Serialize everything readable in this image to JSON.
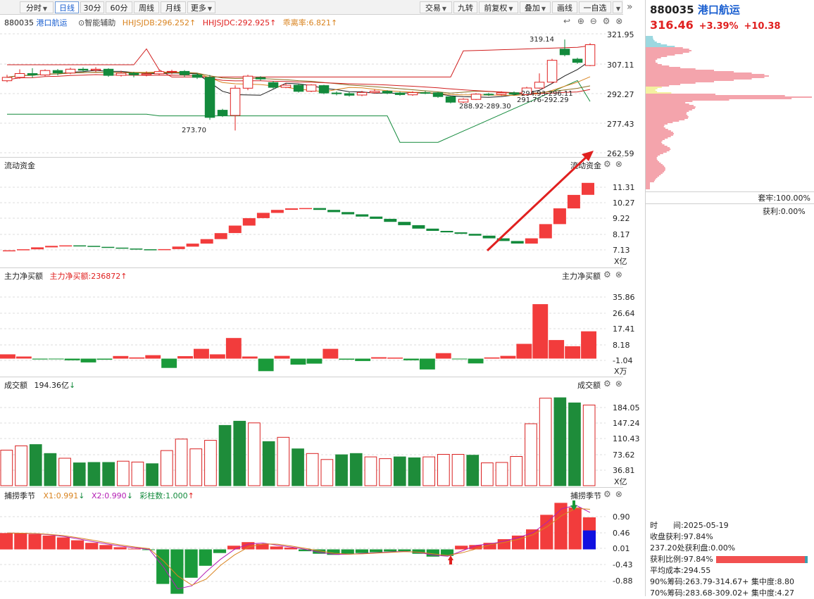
{
  "toolbar": {
    "periods": [
      "分时",
      "日线",
      "30分",
      "60分",
      "周线",
      "月线",
      "更多"
    ],
    "active_period": "日线",
    "right_buttons": [
      "交易",
      "九转",
      "前复权",
      "叠加",
      "画线",
      "一自选"
    ],
    "collapse_icon": "double-chevron-right-icon"
  },
  "stock": {
    "code": "880035",
    "name": "港口航运",
    "price": "316.46",
    "change_pct": "+3.39%",
    "change": "+10.38",
    "up_color": "#e0201f",
    "down_color": "#138a3c"
  },
  "main_panel": {
    "assist_label": "智能辅助",
    "indicators": [
      {
        "name": "HHJSJDB",
        "value": "296.252",
        "color": "#d9831f"
      },
      {
        "name": "HHJSJDC",
        "value": "292.925",
        "color": "#e0201f"
      },
      {
        "name": "乖离率",
        "value": "6.821",
        "color": "#d9831f"
      }
    ],
    "price_axis": [
      "321.95",
      "307.11",
      "292.27",
      "277.43",
      "262.59"
    ],
    "annotations": [
      "319.14",
      "273.70",
      "288.92-289.30",
      "294.93-296.11",
      "291.76-292.29"
    ],
    "candles": [
      [
        298.5,
        300.2,
        301.5,
        297.8
      ],
      [
        300.2,
        302.1,
        304.2,
        299.5
      ],
      [
        302.1,
        301.4,
        304.8,
        300.1
      ],
      [
        301.4,
        303.6,
        304.2,
        300.8
      ],
      [
        303.6,
        302.4,
        304.4,
        301.2
      ],
      [
        302.4,
        304.3,
        305.0,
        301.8
      ],
      [
        304.3,
        303.8,
        305.2,
        302.9
      ],
      [
        303.8,
        304.3,
        305.3,
        302.9
      ],
      [
        304.3,
        301.2,
        304.8,
        300.5
      ],
      [
        301.2,
        302.3,
        303.5,
        300.6
      ],
      [
        302.3,
        301.5,
        303.0,
        300.2
      ],
      [
        301.5,
        302.0,
        303.2,
        300.7
      ],
      [
        302.0,
        303.1,
        304.0,
        301.2
      ],
      [
        303.1,
        303.2,
        304.0,
        301.8
      ],
      [
        303.2,
        301.5,
        303.8,
        300.4
      ],
      [
        301.5,
        300.2,
        302.4,
        299.4
      ],
      [
        300.2,
        280.2,
        301.4,
        279.0
      ],
      [
        283.8,
        281.2,
        284.5,
        280.4
      ],
      [
        281.2,
        294.8,
        296.2,
        273.7
      ],
      [
        294.8,
        300.8,
        301.5,
        293.8
      ],
      [
        300.1,
        299.4,
        300.8,
        298.6
      ],
      [
        297.6,
        295.2,
        298.4,
        294.5
      ],
      [
        295.2,
        296.3,
        297.2,
        294.8
      ],
      [
        296.3,
        293.2,
        296.8,
        292.6
      ],
      [
        293.3,
        296.4,
        296.8,
        292.9
      ],
      [
        296.1,
        292.4,
        296.5,
        291.8
      ],
      [
        292.4,
        292.0,
        293.2,
        291.2
      ],
      [
        292.1,
        291.3,
        292.8,
        290.6
      ],
      [
        291.4,
        292.7,
        293.5,
        290.8
      ],
      [
        292.6,
        293.3,
        294.2,
        292.0
      ],
      [
        293.3,
        292.4,
        293.8,
        291.8
      ],
      [
        292.4,
        291.6,
        293.1,
        291.0
      ],
      [
        291.5,
        292.6,
        293.3,
        291.0
      ],
      [
        292.6,
        292.5,
        293.4,
        291.8
      ],
      [
        292.5,
        290.6,
        292.9,
        290.0
      ],
      [
        290.5,
        287.8,
        291.0,
        287.2
      ],
      [
        287.9,
        289.3,
        289.8,
        287.3
      ],
      [
        289.2,
        291.8,
        292.4,
        288.9
      ],
      [
        291.8,
        291.7,
        292.5,
        290.9
      ],
      [
        291.7,
        292.5,
        293.3,
        291.0
      ],
      [
        292.5,
        291.8,
        293.2,
        291.1
      ],
      [
        291.6,
        294.9,
        295.5,
        291.4
      ],
      [
        294.9,
        297.8,
        302.2,
        294.5
      ],
      [
        297.8,
        308.7,
        309.5,
        297.2
      ],
      [
        314.3,
        311.5,
        319.1,
        310.7
      ],
      [
        309.3,
        307.7,
        310.0,
        306.9
      ],
      [
        306.1,
        316.5,
        317.3,
        305.8
      ]
    ],
    "curve_colors": [
      "#d11f1f",
      "#1a1a1a",
      "#d9831f",
      "#8a6d1f",
      "#138a3c"
    ]
  },
  "liquidity_panel": {
    "title": "流动资金",
    "title_right": "流动资金",
    "axis": [
      "11.31",
      "10.27",
      "9.22",
      "8.17",
      "7.13"
    ],
    "unit": "X亿",
    "steps": [
      7.1,
      7.17,
      7.3,
      7.4,
      7.43,
      7.4,
      7.33,
      7.28,
      7.22,
      7.17,
      7.13,
      7.18,
      7.35,
      7.55,
      7.85,
      8.25,
      8.75,
      9.25,
      9.6,
      9.8,
      9.9,
      9.92,
      9.8,
      9.65,
      9.5,
      9.35,
      9.2,
      9.0,
      8.78,
      8.55,
      8.4,
      8.3,
      8.2,
      8.08,
      7.9,
      7.72,
      7.55,
      7.9,
      8.85,
      9.9,
      10.8,
      11.6
    ]
  },
  "mainforce_panel": {
    "title": "主力净买额",
    "value_label": "主力净买额",
    "value": "236872",
    "title_right": "主力净买额",
    "axis": [
      "35.86",
      "26.64",
      "17.41",
      "8.18",
      "-1.04"
    ],
    "unit": "X万",
    "values": [
      2.5,
      1.2,
      -0.5,
      -0.3,
      -1.0,
      -2.2,
      -0.6,
      1.5,
      0.7,
      2.0,
      -5.4,
      1.4,
      5.7,
      2.5,
      12.0,
      1.2,
      -7.3,
      1.6,
      -3.5,
      -2.9,
      5.7,
      -0.6,
      -1.4,
      0.8,
      0.6,
      -1.0,
      -6.3,
      3.2,
      -0.4,
      -2.8,
      0.7,
      1.6,
      8.6,
      31.7,
      10.8,
      7.2,
      15.9
    ]
  },
  "volume_panel": {
    "title": "成交额",
    "value": "194.36亿",
    "title_right": "成交额",
    "axis": [
      "184.05",
      "147.24",
      "110.43",
      "73.62",
      "36.81"
    ],
    "unit": "X亿",
    "values": [
      84,
      94,
      97,
      76,
      65,
      54,
      55,
      55,
      58,
      56,
      52,
      83,
      110,
      87,
      107,
      142,
      152,
      148,
      104,
      114,
      87,
      76,
      62,
      73,
      76,
      68,
      64,
      68,
      66,
      68,
      74,
      74,
      72,
      54,
      55,
      69,
      146,
      206,
      207,
      195,
      190
    ],
    "up_flags": [
      1,
      1,
      0,
      0,
      1,
      0,
      0,
      0,
      1,
      1,
      0,
      1,
      1,
      1,
      1,
      0,
      0,
      1,
      0,
      1,
      0,
      1,
      1,
      0,
      0,
      1,
      1,
      0,
      0,
      1,
      1,
      1,
      0,
      1,
      1,
      1,
      1,
      1,
      0,
      0,
      1
    ]
  },
  "season_panel": {
    "title": "捕捞季节",
    "x1": "X1:0.991",
    "x2": "X2:0.990",
    "bars": "彩柱数:1.000",
    "title_right": "捕捞季节",
    "axis": [
      "0.90",
      "0.46",
      "0.01",
      "-0.43",
      "-0.88"
    ],
    "values": [
      0.45,
      0.44,
      0.42,
      0.38,
      0.33,
      0.25,
      0.18,
      0.12,
      0.06,
      0.02,
      -0.02,
      -0.95,
      -1.22,
      -0.78,
      -0.45,
      -0.1,
      0.1,
      0.2,
      0.15,
      0.08,
      0.05,
      -0.05,
      -0.12,
      -0.15,
      -0.12,
      -0.1,
      -0.08,
      -0.06,
      -0.05,
      -0.12,
      -0.2,
      -0.18,
      0.1,
      0.12,
      0.18,
      0.28,
      0.38,
      0.55,
      0.95,
      1.28,
      1.15,
      0.88
    ],
    "last_blue": 0.52
  },
  "side": {
    "trapped": "套牢:100.00%",
    "profit": "获利:0.00%",
    "time_label": "时　　间:2025-05-19",
    "close_profit": "收盘获利:97.84%",
    "level_profit": "237.20处获利盘:0.00%",
    "profit_ratio": "获利比例:97.84%",
    "avg_cost": "平均成本:294.55",
    "chip90": "90%筹码:263.79-314.67+ 集中度:8.80",
    "chip70": "70%筹码:283.68-309.02+ 集中度:4.27"
  }
}
